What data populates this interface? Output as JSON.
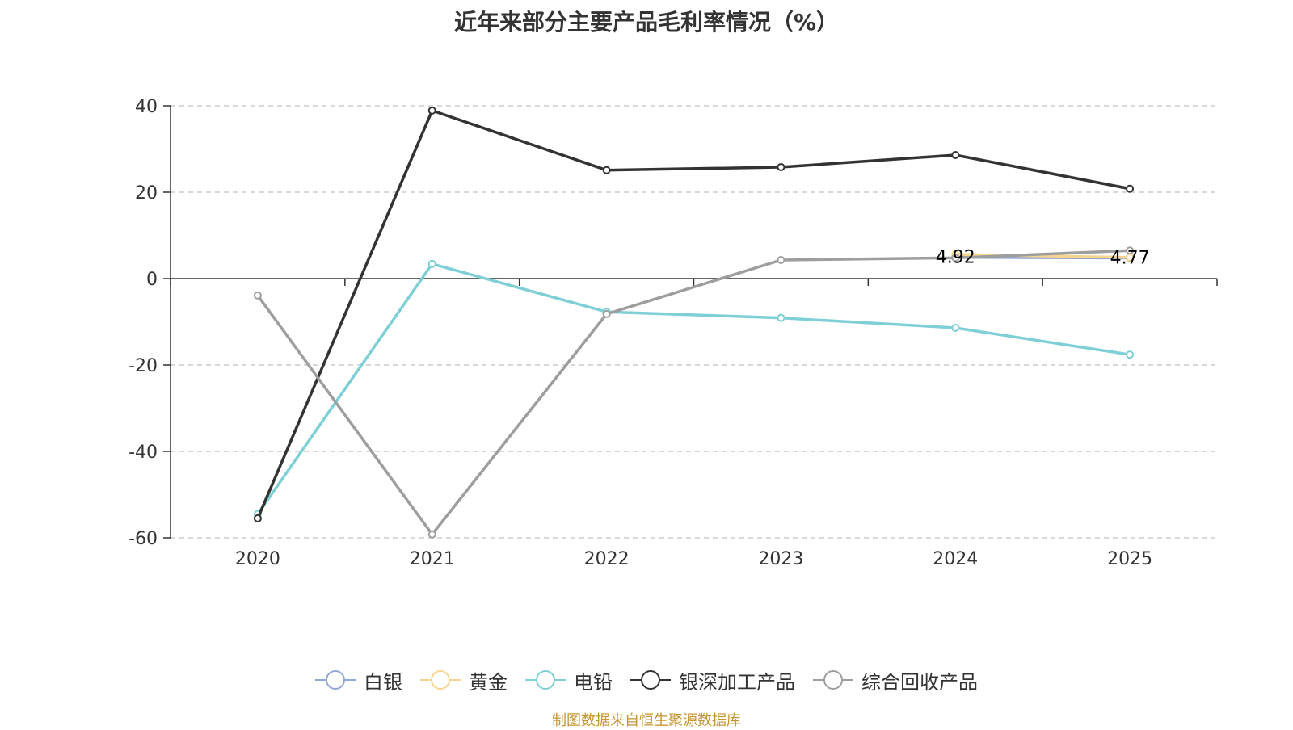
{
  "chart_data": {
    "type": "line",
    "title": "近年来部分主要产品毛利率情况（%）",
    "source": "制图数据来自恒生聚源数据库",
    "categories": [
      "2020",
      "2021",
      "2022",
      "2023",
      "2024",
      "2025"
    ],
    "ylim": [
      -60,
      40
    ],
    "yticks": [
      40,
      20,
      0,
      -20,
      -40,
      -60
    ],
    "grid": true,
    "legend_position": "bottom",
    "series": [
      {
        "name": "白银",
        "color": "#8fa8d8",
        "values": [
          null,
          null,
          null,
          null,
          4.92,
          4.77
        ]
      },
      {
        "name": "黄金",
        "color": "#f7d58f",
        "values": [
          null,
          null,
          null,
          null,
          5.6,
          4.9
        ]
      },
      {
        "name": "电铅",
        "color": "#7fd0d6",
        "values": [
          -54.5,
          3.4,
          -7.7,
          -9.1,
          -11.4,
          -17.6
        ]
      },
      {
        "name": "银深加工产品",
        "color": "#333333",
        "values": [
          -55.5,
          38.9,
          25.1,
          25.8,
          28.6,
          20.8
        ]
      },
      {
        "name": "综合回收产品",
        "color": "#9e9e9e",
        "values": [
          -3.9,
          -59.2,
          -8.2,
          4.3,
          4.8,
          6.5
        ]
      }
    ],
    "data_labels": [
      {
        "series": "白银",
        "x": "2024",
        "text": "4.92"
      },
      {
        "series": "白银",
        "x": "2025",
        "text": "4.77"
      }
    ]
  }
}
